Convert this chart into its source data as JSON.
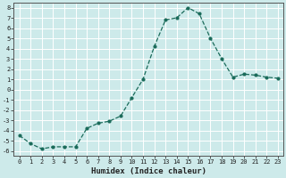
{
  "x": [
    0,
    1,
    2,
    3,
    4,
    5,
    6,
    7,
    8,
    9,
    10,
    11,
    12,
    13,
    14,
    15,
    16,
    17,
    18,
    19,
    20,
    21,
    22,
    23
  ],
  "y": [
    -4.5,
    -5.3,
    -5.8,
    -5.6,
    -5.6,
    -5.6,
    -3.8,
    -3.3,
    -3.1,
    -2.6,
    -0.8,
    1.0,
    4.2,
    6.8,
    7.0,
    8.0,
    7.4,
    5.0,
    3.0,
    1.2,
    1.5,
    1.4,
    1.2,
    1.1
  ],
  "line_color": "#1a6b5a",
  "marker": "o",
  "markersize": 2.0,
  "linewidth": 0.9,
  "xlabel": "Humidex (Indice chaleur)",
  "xlabel_fontsize": 6.5,
  "background_color": "#cdeaea",
  "grid_color": "#ffffff",
  "tick_color": "#222222",
  "xlim": [
    -0.5,
    23.5
  ],
  "ylim": [
    -6.5,
    8.5
  ],
  "yticks": [
    -6,
    -5,
    -4,
    -3,
    -2,
    -1,
    0,
    1,
    2,
    3,
    4,
    5,
    6,
    7,
    8
  ],
  "xticks": [
    0,
    1,
    2,
    3,
    4,
    5,
    6,
    7,
    8,
    9,
    10,
    11,
    12,
    13,
    14,
    15,
    16,
    17,
    18,
    19,
    20,
    21,
    22,
    23
  ],
  "xtick_labels": [
    "0",
    "1",
    "2",
    "3",
    "4",
    "5",
    "6",
    "7",
    "8",
    "9",
    "10",
    "11",
    "12",
    "13",
    "14",
    "15",
    "16",
    "17",
    "18",
    "19",
    "20",
    "21",
    "22",
    "23"
  ],
  "tick_fontsize": 5.0
}
